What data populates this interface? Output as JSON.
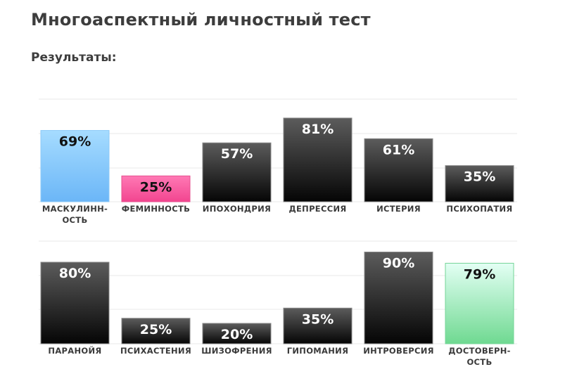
{
  "title": "Многоаспектный личностный тест",
  "results_label": "Результаты:",
  "colors": {
    "dark_top": "#5c5c5c",
    "dark_bottom": "#050505",
    "masculinity_top": "#a6dcff",
    "masculinity_bottom": "#6bb6f7",
    "femininity_top": "#ff79b5",
    "femininity_bottom": "#f2458f",
    "validity_top": "#e3fff4",
    "validity_bottom": "#6fd991",
    "grid": "#e9e9e9"
  },
  "chart_data": [
    {
      "type": "bar",
      "categories": [
        [
          "МАСКУЛИНН-",
          "ОСТЬ"
        ],
        [
          "ФЕМИННОСТЬ"
        ],
        [
          "ИПОХОНДРИЯ"
        ],
        [
          "ДЕПРЕССИЯ"
        ],
        [
          "ИСТЕРИЯ"
        ],
        [
          "ПСИХОПАТИЯ"
        ]
      ],
      "values": [
        69,
        25,
        57,
        81,
        61,
        35
      ],
      "value_labels": [
        "69%",
        "25%",
        "57%",
        "81%",
        "61%",
        "35%"
      ],
      "bar_styles": [
        "masculinity",
        "femininity",
        "dark",
        "dark",
        "dark",
        "dark"
      ],
      "ylim": [
        0,
        100
      ],
      "grid": true
    },
    {
      "type": "bar",
      "categories": [
        [
          "ПАРАНОЙЯ"
        ],
        [
          "ПСИХАСТЕНИЯ"
        ],
        [
          "ШИЗОФРЕНИЯ"
        ],
        [
          "ГИПОМАНИЯ"
        ],
        [
          "ИНТРОВЕРСИЯ"
        ],
        [
          "ДОСТОВЕРН-",
          "ОСТЬ"
        ]
      ],
      "values": [
        80,
        25,
        20,
        35,
        90,
        79
      ],
      "value_labels": [
        "80%",
        "25%",
        "20%",
        "35%",
        "90%",
        "79%"
      ],
      "bar_styles": [
        "dark",
        "dark",
        "dark",
        "dark",
        "dark",
        "validity"
      ],
      "ylim": [
        0,
        100
      ],
      "grid": true
    }
  ]
}
